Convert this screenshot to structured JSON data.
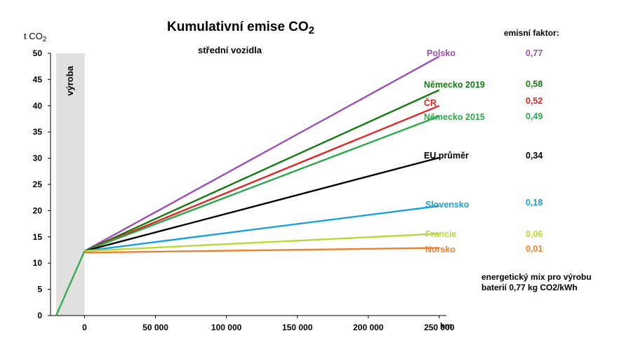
{
  "chart_data": {
    "type": "line",
    "title": "Kumulativní emise CO",
    "title_sub": "2",
    "subtitle": "střední vozidla",
    "ylabel": "t CO",
    "ylabel_sub": "2",
    "xunit": "km",
    "ylim": [
      0,
      50
    ],
    "xlim": [
      -20000,
      255000
    ],
    "yticks": [
      0,
      5,
      10,
      15,
      20,
      25,
      30,
      35,
      40,
      45,
      50
    ],
    "xticks": [
      0,
      50000,
      100000,
      150000,
      200000,
      250000
    ],
    "xtick_labels": [
      "0",
      "50 000",
      "100 000",
      "150 000",
      "200 000",
      "250 000"
    ],
    "production_band": {
      "label": "výroba",
      "x_start": -20000,
      "x_end": 0,
      "color": "#e0e0e0"
    },
    "production_line": {
      "x": [
        -20000,
        0
      ],
      "y": [
        0,
        12.3
      ],
      "color": "#2aa84a"
    },
    "factor_header": "emisní faktor:",
    "series": [
      {
        "name": "Polsko",
        "factor": "0,77",
        "color": "#9b4fb0",
        "x": [
          0,
          250000
        ],
        "y": [
          12.3,
          49.4
        ]
      },
      {
        "name": "Německo 2019",
        "factor": "0,58",
        "color": "#137a13",
        "x": [
          0,
          250000
        ],
        "y": [
          12.3,
          43
        ]
      },
      {
        "name": "ČR",
        "factor": "0,52",
        "color": "#e02424",
        "x": [
          0,
          250000
        ],
        "y": [
          12.3,
          40
        ]
      },
      {
        "name": "Německo 2015",
        "factor": "0,49",
        "color": "#2aa84a",
        "x": [
          0,
          250000
        ],
        "y": [
          12.3,
          38
        ]
      },
      {
        "name": "EU průměr",
        "factor": "0,34",
        "color": "#000000",
        "x": [
          0,
          250000
        ],
        "y": [
          12.3,
          30.1
        ]
      },
      {
        "name": "Slovensko",
        "factor": "0,18",
        "color": "#1ba0d8",
        "x": [
          0,
          250000
        ],
        "y": [
          12.3,
          20.9
        ]
      },
      {
        "name": "Francie",
        "factor": "0,06",
        "color": "#b8d838",
        "x": [
          0,
          250000
        ],
        "y": [
          12.3,
          15.6
        ]
      },
      {
        "name": "Norsko",
        "factor": "0,01",
        "color": "#f08030",
        "x": [
          0,
          250000
        ],
        "y": [
          12,
          12.9
        ]
      }
    ],
    "note_lines": [
      "energetický mix pro výrobu",
      "baterií 0,77 kg CO2/kWh"
    ],
    "grid": false,
    "legend": "right"
  }
}
